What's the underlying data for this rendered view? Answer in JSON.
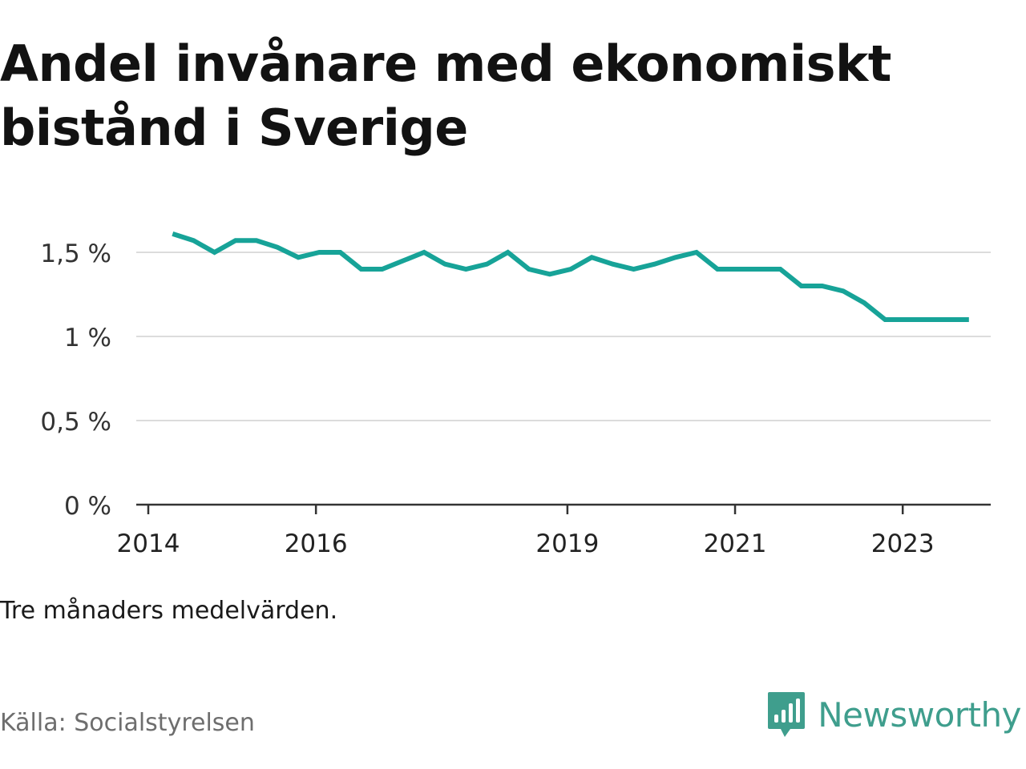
{
  "chart_data": {
    "type": "line",
    "title": "Andel invånare med ekonomiskt bistånd i Sverige",
    "note": "Tre månaders medelvärden.",
    "source": "Källa: Socialstyrelsen",
    "brand": "Newsworthy",
    "xlabel": "",
    "ylabel": "",
    "xlim": [
      2014,
      2024.05
    ],
    "ylim": [
      0,
      1.5
    ],
    "x_ticks": [
      {
        "value": 2014,
        "label": "2014"
      },
      {
        "value": 2016,
        "label": "2016"
      },
      {
        "value": 2019,
        "label": "2019"
      },
      {
        "value": 2021,
        "label": "2021"
      },
      {
        "value": 2023,
        "label": "2023"
      }
    ],
    "y_ticks": [
      {
        "value": 0,
        "label": "0 %"
      },
      {
        "value": 0.5,
        "label": "0,5 %"
      },
      {
        "value": 1,
        "label": "1 %"
      },
      {
        "value": 1.5,
        "label": "1,5 %"
      }
    ],
    "grid": true,
    "line_color": "#17a398",
    "series": [
      {
        "x": [
          2014.29,
          2014.54,
          2014.79,
          2015.04,
          2015.29,
          2015.54,
          2015.79,
          2016.04,
          2016.29,
          2016.54,
          2016.79,
          2017.04,
          2017.29,
          2017.54,
          2017.79,
          2018.04,
          2018.29,
          2018.54,
          2018.79,
          2019.04,
          2019.29,
          2019.54,
          2019.79,
          2020.04,
          2020.29,
          2020.54,
          2020.79,
          2021.04,
          2021.29,
          2021.54,
          2021.79,
          2022.04,
          2022.29,
          2022.54,
          2022.79,
          2023.04,
          2023.29,
          2023.54,
          2023.79
        ],
        "values": [
          1.61,
          1.57,
          1.5,
          1.57,
          1.57,
          1.53,
          1.47,
          1.5,
          1.5,
          1.4,
          1.4,
          1.45,
          1.5,
          1.43,
          1.4,
          1.43,
          1.5,
          1.4,
          1.37,
          1.4,
          1.47,
          1.43,
          1.4,
          1.43,
          1.47,
          1.5,
          1.4,
          1.4,
          1.4,
          1.4,
          1.3,
          1.3,
          1.27,
          1.2,
          1.1,
          1.1,
          1.1,
          1.1,
          1.1
        ]
      }
    ]
  }
}
